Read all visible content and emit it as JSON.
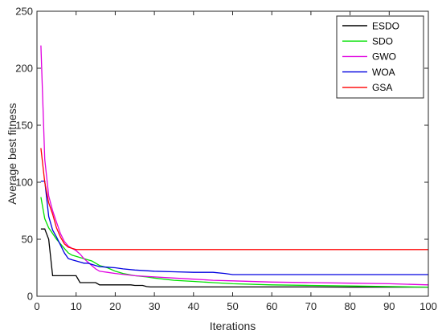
{
  "chart_data": {
    "type": "line",
    "title": "",
    "xlabel": "Iterations",
    "ylabel": "Average best fitness",
    "xlim": [
      0,
      100
    ],
    "ylim": [
      0,
      250
    ],
    "xticks": [
      0,
      10,
      20,
      30,
      40,
      50,
      60,
      70,
      80,
      90,
      100
    ],
    "yticks": [
      0,
      50,
      100,
      150,
      200,
      250
    ],
    "grid": false,
    "legend_position": "top-right",
    "series": [
      {
        "name": "ESDO",
        "color": "#000000",
        "points": [
          [
            1,
            59
          ],
          [
            2,
            59
          ],
          [
            3,
            50
          ],
          [
            4,
            18
          ],
          [
            5,
            18
          ],
          [
            6,
            18
          ],
          [
            7,
            18
          ],
          [
            8,
            18
          ],
          [
            9,
            18
          ],
          [
            10,
            18
          ],
          [
            11,
            12
          ],
          [
            12,
            12
          ],
          [
            13,
            12
          ],
          [
            14,
            12
          ],
          [
            15,
            12
          ],
          [
            16,
            10
          ],
          [
            17,
            10
          ],
          [
            18,
            10
          ],
          [
            19,
            10
          ],
          [
            20,
            10
          ],
          [
            21,
            10
          ],
          [
            22,
            10
          ],
          [
            23,
            10
          ],
          [
            24,
            10
          ],
          [
            25,
            9.5
          ],
          [
            26,
            9.5
          ],
          [
            27,
            9.5
          ],
          [
            28,
            8.5
          ],
          [
            29,
            8.2
          ],
          [
            30,
            8.2
          ],
          [
            35,
            8.2
          ],
          [
            40,
            8.2
          ],
          [
            50,
            8.2
          ],
          [
            60,
            8.2
          ],
          [
            70,
            8.2
          ],
          [
            80,
            8
          ],
          [
            90,
            8
          ],
          [
            100,
            8
          ]
        ]
      },
      {
        "name": "SDO",
        "color": "#00e000",
        "points": [
          [
            1,
            87
          ],
          [
            2,
            68
          ],
          [
            3,
            60
          ],
          [
            4,
            55
          ],
          [
            5,
            50
          ],
          [
            6,
            46
          ],
          [
            7,
            42
          ],
          [
            8,
            38
          ],
          [
            9,
            36
          ],
          [
            10,
            35
          ],
          [
            11,
            34
          ],
          [
            12,
            33
          ],
          [
            13,
            32
          ],
          [
            14,
            31
          ],
          [
            15,
            29
          ],
          [
            16,
            27
          ],
          [
            18,
            25
          ],
          [
            20,
            22
          ],
          [
            22,
            20
          ],
          [
            25,
            18
          ],
          [
            28,
            17
          ],
          [
            30,
            16
          ],
          [
            35,
            14
          ],
          [
            40,
            13
          ],
          [
            45,
            12
          ],
          [
            50,
            11
          ],
          [
            60,
            10
          ],
          [
            70,
            9.5
          ],
          [
            80,
            9
          ],
          [
            90,
            8.5
          ],
          [
            100,
            8
          ]
        ]
      },
      {
        "name": "GWO",
        "color": "#e000e0",
        "points": [
          [
            1,
            220
          ],
          [
            2,
            120
          ],
          [
            3,
            88
          ],
          [
            4,
            75
          ],
          [
            5,
            65
          ],
          [
            6,
            55
          ],
          [
            7,
            48
          ],
          [
            8,
            44
          ],
          [
            9,
            42
          ],
          [
            10,
            40
          ],
          [
            11,
            37
          ],
          [
            12,
            33
          ],
          [
            13,
            30
          ],
          [
            14,
            27
          ],
          [
            15,
            24
          ],
          [
            16,
            22
          ],
          [
            18,
            21
          ],
          [
            20,
            20
          ],
          [
            25,
            18
          ],
          [
            30,
            17
          ],
          [
            35,
            16
          ],
          [
            40,
            15
          ],
          [
            45,
            14
          ],
          [
            50,
            13.5
          ],
          [
            60,
            12.5
          ],
          [
            70,
            12
          ],
          [
            80,
            11.5
          ],
          [
            90,
            11
          ],
          [
            100,
            10
          ]
        ]
      },
      {
        "name": "WOA",
        "color": "#0000e0",
        "points": [
          [
            1,
            101
          ],
          [
            2,
            101
          ],
          [
            3,
            70
          ],
          [
            4,
            58
          ],
          [
            5,
            52
          ],
          [
            6,
            45
          ],
          [
            7,
            38
          ],
          [
            8,
            33
          ],
          [
            9,
            32
          ],
          [
            10,
            31
          ],
          [
            11,
            30
          ],
          [
            12,
            29
          ],
          [
            13,
            29
          ],
          [
            14,
            28
          ],
          [
            15,
            27
          ],
          [
            16,
            26
          ],
          [
            18,
            25.5
          ],
          [
            20,
            25
          ],
          [
            22,
            24
          ],
          [
            25,
            23
          ],
          [
            30,
            22
          ],
          [
            35,
            21.5
          ],
          [
            40,
            21
          ],
          [
            45,
            21
          ],
          [
            48,
            20
          ],
          [
            50,
            19
          ],
          [
            60,
            19
          ],
          [
            70,
            19
          ],
          [
            80,
            19
          ],
          [
            90,
            19
          ],
          [
            100,
            19
          ]
        ]
      },
      {
        "name": "GSA",
        "color": "#ff0000",
        "points": [
          [
            1,
            130
          ],
          [
            2,
            100
          ],
          [
            3,
            82
          ],
          [
            4,
            72
          ],
          [
            5,
            60
          ],
          [
            6,
            52
          ],
          [
            7,
            46
          ],
          [
            8,
            43
          ],
          [
            9,
            42
          ],
          [
            10,
            41
          ],
          [
            11,
            41
          ],
          [
            15,
            41
          ],
          [
            20,
            41
          ],
          [
            30,
            41
          ],
          [
            40,
            41
          ],
          [
            50,
            41
          ],
          [
            60,
            41
          ],
          [
            70,
            41
          ],
          [
            80,
            41
          ],
          [
            90,
            41
          ],
          [
            100,
            41
          ]
        ]
      }
    ]
  }
}
